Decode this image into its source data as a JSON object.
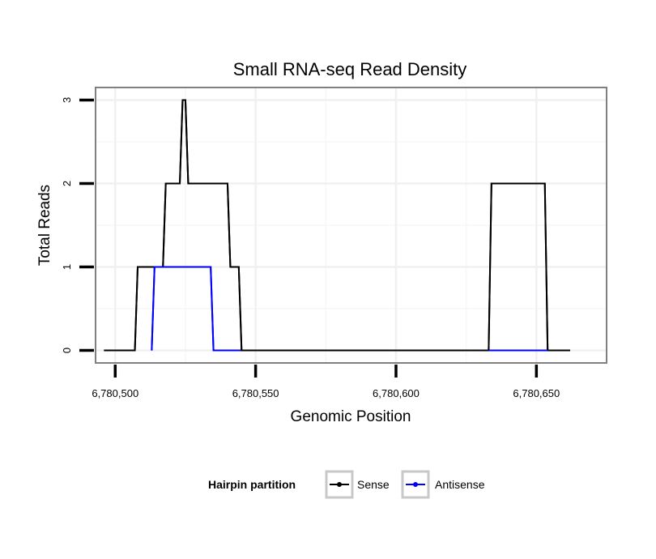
{
  "chart_data": {
    "type": "line",
    "title": "Small RNA-seq Read Density",
    "xlabel": "Genomic Position",
    "ylabel": "Total Reads",
    "xlim": [
      6780493,
      6780675
    ],
    "ylim": [
      -0.15,
      3.15
    ],
    "x_ticks": [
      {
        "value": 6780500,
        "label": "6,780,500"
      },
      {
        "value": 6780550,
        "label": "6,780,550"
      },
      {
        "value": 6780600,
        "label": "6,780,600"
      },
      {
        "value": 6780650,
        "label": "6,780,650"
      }
    ],
    "y_ticks": [
      {
        "value": 0,
        "label": "0"
      },
      {
        "value": 1,
        "label": "1"
      },
      {
        "value": 2,
        "label": "2"
      },
      {
        "value": 3,
        "label": "3"
      }
    ],
    "grid": true,
    "legend": {
      "title": "Hairpin partition",
      "position": "bottom"
    },
    "series": [
      {
        "name": "Sense",
        "color": "#000000",
        "x": [
          6780496,
          6780507,
          6780508,
          6780517,
          6780518,
          6780523,
          6780524,
          6780525,
          6780526,
          6780540,
          6780541,
          6780544,
          6780545,
          6780633,
          6780634,
          6780653,
          6780654,
          6780662
        ],
        "y": [
          0,
          0,
          1,
          1,
          2,
          2,
          3,
          3,
          2,
          2,
          1,
          1,
          0,
          0,
          2,
          2,
          0,
          0
        ]
      },
      {
        "name": "Antisense",
        "color": "#0000ff",
        "x": [
          6780513,
          6780514,
          6780534,
          6780535,
          6780545,
          6780633,
          6780654
        ],
        "y": [
          0,
          1,
          1,
          0,
          0,
          0,
          0
        ]
      }
    ]
  }
}
